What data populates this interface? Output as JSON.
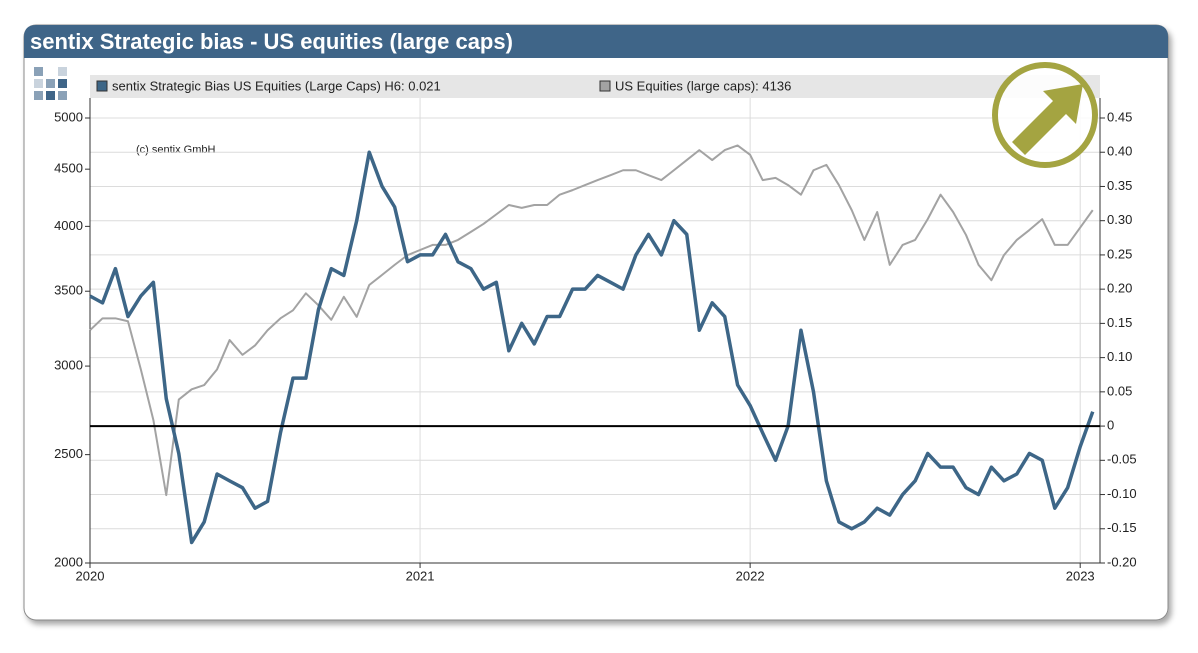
{
  "chart_data": {
    "type": "line",
    "title": "sentix Strategic bias - US equities (large caps)",
    "annotation": "(c) sentix GmbH",
    "x": [
      2020,
      2020.038,
      2020.077,
      2020.115,
      2020.154,
      2020.192,
      2020.231,
      2020.269,
      2020.308,
      2020.346,
      2020.385,
      2020.423,
      2020.462,
      2020.5,
      2020.538,
      2020.577,
      2020.615,
      2020.654,
      2020.692,
      2020.731,
      2020.769,
      2020.808,
      2020.846,
      2020.885,
      2020.923,
      2020.962,
      2021,
      2021.038,
      2021.077,
      2021.115,
      2021.154,
      2021.192,
      2021.231,
      2021.269,
      2021.308,
      2021.346,
      2021.385,
      2021.423,
      2021.462,
      2021.5,
      2021.538,
      2021.577,
      2021.615,
      2021.654,
      2021.692,
      2021.731,
      2021.769,
      2021.808,
      2021.846,
      2021.885,
      2021.923,
      2021.962,
      2022,
      2022.038,
      2022.077,
      2022.115,
      2022.154,
      2022.192,
      2022.231,
      2022.269,
      2022.308,
      2022.346,
      2022.385,
      2022.423,
      2022.462,
      2022.5,
      2022.538,
      2022.577,
      2022.615,
      2022.654,
      2022.692,
      2022.731,
      2022.769,
      2022.808,
      2022.846,
      2022.885,
      2022.923,
      2022.962,
      2023,
      2023.038
    ],
    "xlim": [
      2020,
      2023.06
    ],
    "xticks": [
      2020,
      2021,
      2022,
      2023
    ],
    "yscale": "log",
    "ylim": [
      2000,
      5000
    ],
    "yticks": [
      2000,
      2500,
      3000,
      3500,
      4000,
      4500,
      5000
    ],
    "y2lim": [
      -0.2,
      0.45
    ],
    "y2ticks": [
      {
        "value": -0.2,
        "label": "-0.20"
      },
      -0.15,
      {
        "value": -0.1,
        "label": "-0.10"
      },
      -0.05,
      0,
      0.05,
      {
        "value": 0.1,
        "label": "0.10"
      },
      0.15,
      {
        "value": 0.2,
        "label": "0.20"
      },
      0.25,
      {
        "value": 0.3,
        "label": "0.30"
      },
      0.35,
      {
        "value": 0.4,
        "label": "0.40"
      },
      0.45
    ],
    "grid": true,
    "series": [
      {
        "name": "sentix Strategic Bias US Equities (Large Caps) H6: 0.021",
        "color": "#3d6687",
        "axis": "y2",
        "values": [
          0.19,
          0.18,
          0.23,
          0.16,
          0.19,
          0.21,
          0.04,
          -0.04,
          -0.17,
          -0.14,
          -0.07,
          -0.08,
          -0.09,
          -0.12,
          -0.11,
          -0.01,
          0.07,
          0.07,
          0.17,
          0.23,
          0.22,
          0.3,
          0.4,
          0.35,
          0.32,
          0.24,
          0.25,
          0.25,
          0.28,
          0.24,
          0.23,
          0.2,
          0.21,
          0.11,
          0.15,
          0.12,
          0.16,
          0.16,
          0.2,
          0.2,
          0.22,
          0.21,
          0.2,
          0.25,
          0.28,
          0.25,
          0.3,
          0.28,
          0.14,
          0.18,
          0.16,
          0.06,
          0.03,
          -0.01,
          -0.05,
          0,
          0.14,
          0.05,
          -0.08,
          -0.14,
          -0.15,
          -0.14,
          -0.12,
          -0.13,
          -0.1,
          -0.08,
          -0.04,
          -0.06,
          -0.06,
          -0.09,
          -0.1,
          -0.06,
          -0.08,
          -0.07,
          -0.04,
          -0.05,
          -0.12,
          -0.09,
          -0.03,
          0.021
        ]
      },
      {
        "name": "US Equities (large caps): 4136",
        "color": "#a3a3a3",
        "axis": "y",
        "values": [
          3230,
          3310,
          3310,
          3290,
          2980,
          2685,
          2300,
          2800,
          2860,
          2885,
          2980,
          3165,
          3070,
          3130,
          3230,
          3310,
          3365,
          3485,
          3400,
          3300,
          3460,
          3320,
          3545,
          3620,
          3695,
          3770,
          3810,
          3850,
          3850,
          3890,
          3955,
          4020,
          4100,
          4180,
          4155,
          4180,
          4180,
          4270,
          4310,
          4355,
          4400,
          4445,
          4490,
          4490,
          4445,
          4400,
          4490,
          4585,
          4680,
          4585,
          4680,
          4725,
          4635,
          4400,
          4420,
          4355,
          4270,
          4490,
          4540,
          4355,
          4135,
          3890,
          4120,
          3695,
          3850,
          3890,
          4060,
          4270,
          4120,
          3930,
          3695,
          3580,
          3770,
          3890,
          3970,
          4060,
          3850,
          3850,
          3990,
          4136
        ]
      }
    ]
  }
}
